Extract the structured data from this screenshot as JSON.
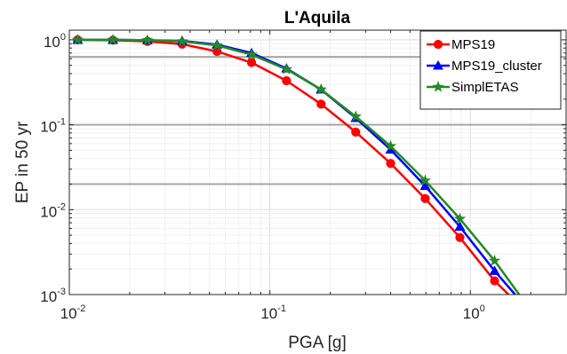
{
  "chart_data": {
    "type": "line",
    "title": "L'Aquila",
    "xlabel": "PGA [g]",
    "ylabel": "EP in 50 yr",
    "xscale": "log",
    "yscale": "log",
    "xlim": [
      0.01,
      3.0
    ],
    "ylim": [
      0.001,
      1.3
    ],
    "xticks": [
      {
        "value": 0.01,
        "base": "10",
        "exp": "-2"
      },
      {
        "value": 0.1,
        "base": "10",
        "exp": "-1"
      },
      {
        "value": 1,
        "base": "10",
        "exp": "0"
      }
    ],
    "yticks": [
      {
        "value": 0.001,
        "base": "10",
        "exp": "-3"
      },
      {
        "value": 0.01,
        "base": "10",
        "exp": "-2"
      },
      {
        "value": 0.1,
        "base": "10",
        "exp": "-1"
      },
      {
        "value": 1,
        "base": "10",
        "exp": "0"
      }
    ],
    "grid": true,
    "legend_position": "top-right",
    "reference_lines": [
      {
        "y": 0.63,
        "color": "#a6a6a6"
      },
      {
        "y": 0.1,
        "color": "#a6a6a6"
      },
      {
        "y": 0.02,
        "color": "#a6a6a6"
      }
    ],
    "series": [
      {
        "name": "MPS19",
        "color": "#ff0000",
        "marker": "circle",
        "x": [
          0.011,
          0.0165,
          0.0245,
          0.0365,
          0.0545,
          0.081,
          0.121,
          0.18,
          0.268,
          0.4,
          0.595,
          0.886,
          1.32,
          1.55
        ],
        "y": [
          1.0,
          0.99,
          0.96,
          0.89,
          0.73,
          0.54,
          0.33,
          0.175,
          0.082,
          0.035,
          0.0135,
          0.0047,
          0.00145,
          0.001
        ]
      },
      {
        "name": "MPS19_cluster",
        "color": "#0000ff",
        "marker": "triangle",
        "x": [
          0.011,
          0.0165,
          0.0245,
          0.0365,
          0.0545,
          0.081,
          0.121,
          0.18,
          0.268,
          0.4,
          0.595,
          0.886,
          1.32,
          1.67
        ],
        "y": [
          1.0,
          1.0,
          0.99,
          0.97,
          0.88,
          0.7,
          0.46,
          0.26,
          0.12,
          0.051,
          0.019,
          0.0063,
          0.0019,
          0.001
        ]
      },
      {
        "name": "SimplETAS",
        "color": "#228b22",
        "marker": "star",
        "x": [
          0.011,
          0.0165,
          0.0245,
          0.0365,
          0.0545,
          0.081,
          0.121,
          0.18,
          0.268,
          0.4,
          0.595,
          0.886,
          1.32,
          1.75
        ],
        "y": [
          1.0,
          1.0,
          0.99,
          0.96,
          0.86,
          0.67,
          0.45,
          0.26,
          0.125,
          0.056,
          0.022,
          0.0078,
          0.0025,
          0.001
        ]
      }
    ]
  }
}
